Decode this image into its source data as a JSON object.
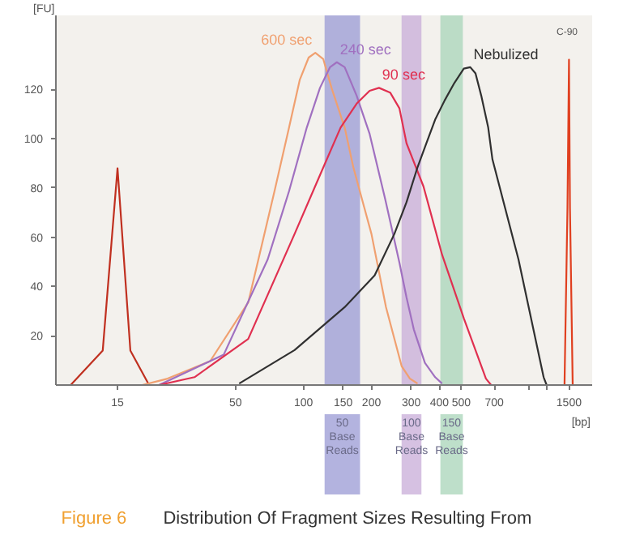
{
  "chart_data": {
    "type": "line",
    "title": "Distribution Of Fragment Sizes Resulting From",
    "xlabel": "[bp]",
    "ylabel": "[FU]",
    "log": "x",
    "xlim": [
      8,
      1900
    ],
    "ylim": [
      0,
      150
    ],
    "xticks": [
      15,
      50,
      100,
      150,
      200,
      300,
      400,
      500,
      700,
      {
        "value": 1000,
        "label": null
      },
      {
        "value": 1200,
        "label": null
      },
      1500
    ],
    "yticks": [
      20,
      40,
      60,
      80,
      100,
      120
    ],
    "marker": "none",
    "line_style": "solid",
    "series": [
      {
        "color": "#c03020",
        "x": [
          9.3,
          12.9,
          15,
          17.1,
          20.7
        ],
        "values": [
          0,
          14,
          88,
          14,
          0
        ]
      },
      {
        "name": "600 sec",
        "color": "#f0a070",
        "x": [
          19.3,
          25,
          38.6,
          56.9,
          74.4,
          86.3,
          96.3,
          105.4,
          112.8,
          122.3,
          133.1,
          142.6,
          152.2,
          166.2,
          200,
          232,
          272,
          296,
          320
        ],
        "values": [
          0,
          2.6,
          9.7,
          33.5,
          78.7,
          104.5,
          123.9,
          132.9,
          134.8,
          132.3,
          120.6,
          112.3,
          104.5,
          88.4,
          61.3,
          31.6,
          7.7,
          2.6,
          0.6
        ]
      },
      {
        "name": "240 sec",
        "color": "#a070c0",
        "x": [
          22.9,
          44.3,
          69.4,
          86.3,
          103.4,
          118.3,
          131.1,
          140.5,
          152.2,
          172,
          196.3,
          230,
          266,
          286,
          308,
          345,
          383,
          411
        ],
        "values": [
          0,
          12.3,
          51,
          78.7,
          104.5,
          120.6,
          129,
          131,
          129,
          117.4,
          101.9,
          75.5,
          49.7,
          35.5,
          22.6,
          9,
          3.2,
          0.6
        ]
      },
      {
        "name": "90 sec",
        "color": "#e03050",
        "x": [
          22.9,
          32.9,
          56.9,
          91.3,
          118.3,
          146,
          172,
          196.3,
          216,
          242,
          266,
          286,
          340,
          411,
          513,
          643,
          678
        ],
        "values": [
          0,
          3.2,
          18.7,
          61.3,
          85.2,
          104.5,
          114.2,
          119.4,
          120.6,
          118.7,
          112.3,
          98.1,
          80.6,
          52.9,
          27.1,
          2.6,
          0
        ]
      },
      {
        "name": "Nebulized",
        "color": "#303030",
        "x": [
          51.9,
          91.3,
          152.2,
          206.6,
          252.6,
          286,
          320,
          350,
          383,
          422,
          466,
          513,
          548,
          578,
          613,
          658,
          687,
          896,
          1158,
          1194
        ],
        "values": [
          0.6,
          14.2,
          31.6,
          44.5,
          61.3,
          74.2,
          88.4,
          98.1,
          107.7,
          115.5,
          122.6,
          128.4,
          129,
          126.5,
          117.4,
          104.5,
          91.6,
          51,
          3.2,
          0
        ]
      },
      {
        "color": "#e04020",
        "x": [
          1433,
          1477,
          1500,
          1515,
          1558
        ],
        "values": [
          0,
          72,
          132,
          72,
          0
        ]
      }
    ],
    "bands": [
      {
        "axis": "x",
        "from": 124,
        "to": 178,
        "label": "50\nBase\nReads",
        "color": "#9a9ad4"
      },
      {
        "axis": "x",
        "from": 272,
        "to": 333,
        "label": "100\nBase\nReads",
        "color": "#c8acd8"
      },
      {
        "axis": "x",
        "from": 404,
        "to": 508,
        "label": "150\nBase\nReads",
        "color": "#a8d4b8"
      }
    ],
    "annotations": [
      "C-90",
      "Figure 6"
    ]
  }
}
